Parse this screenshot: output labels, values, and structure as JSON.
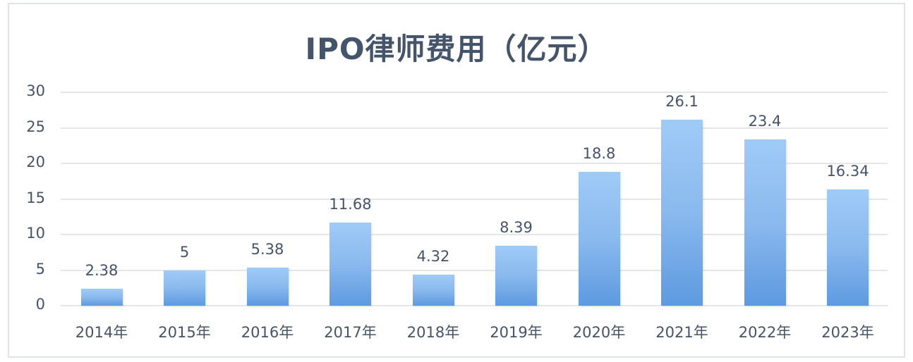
{
  "chart_data": {
    "type": "bar",
    "title": "IPO律师费用（亿元）",
    "categories": [
      "2014年",
      "2015年",
      "2016年",
      "2017年",
      "2018年",
      "2019年",
      "2020年",
      "2021年",
      "2022年",
      "2023年"
    ],
    "values": [
      2.38,
      5,
      5.38,
      11.68,
      4.32,
      8.39,
      18.8,
      26.1,
      23.4,
      16.34
    ],
    "data_labels": [
      "2.38",
      "5",
      "5.38",
      "11.68",
      "4.32",
      "8.39",
      "18.8",
      "26.1",
      "23.4",
      "16.34"
    ],
    "xlabel": "",
    "ylabel": "",
    "ylim": [
      0,
      30
    ],
    "yticks": [
      "0",
      "5",
      "10",
      "15",
      "20",
      "25",
      "30"
    ],
    "grid": true,
    "legend": null,
    "colors": {
      "bar_top": "#9fcbf7",
      "bar_bottom": "#5d9ae0",
      "text": "#44546a",
      "grid": "#e4e6ea"
    }
  }
}
